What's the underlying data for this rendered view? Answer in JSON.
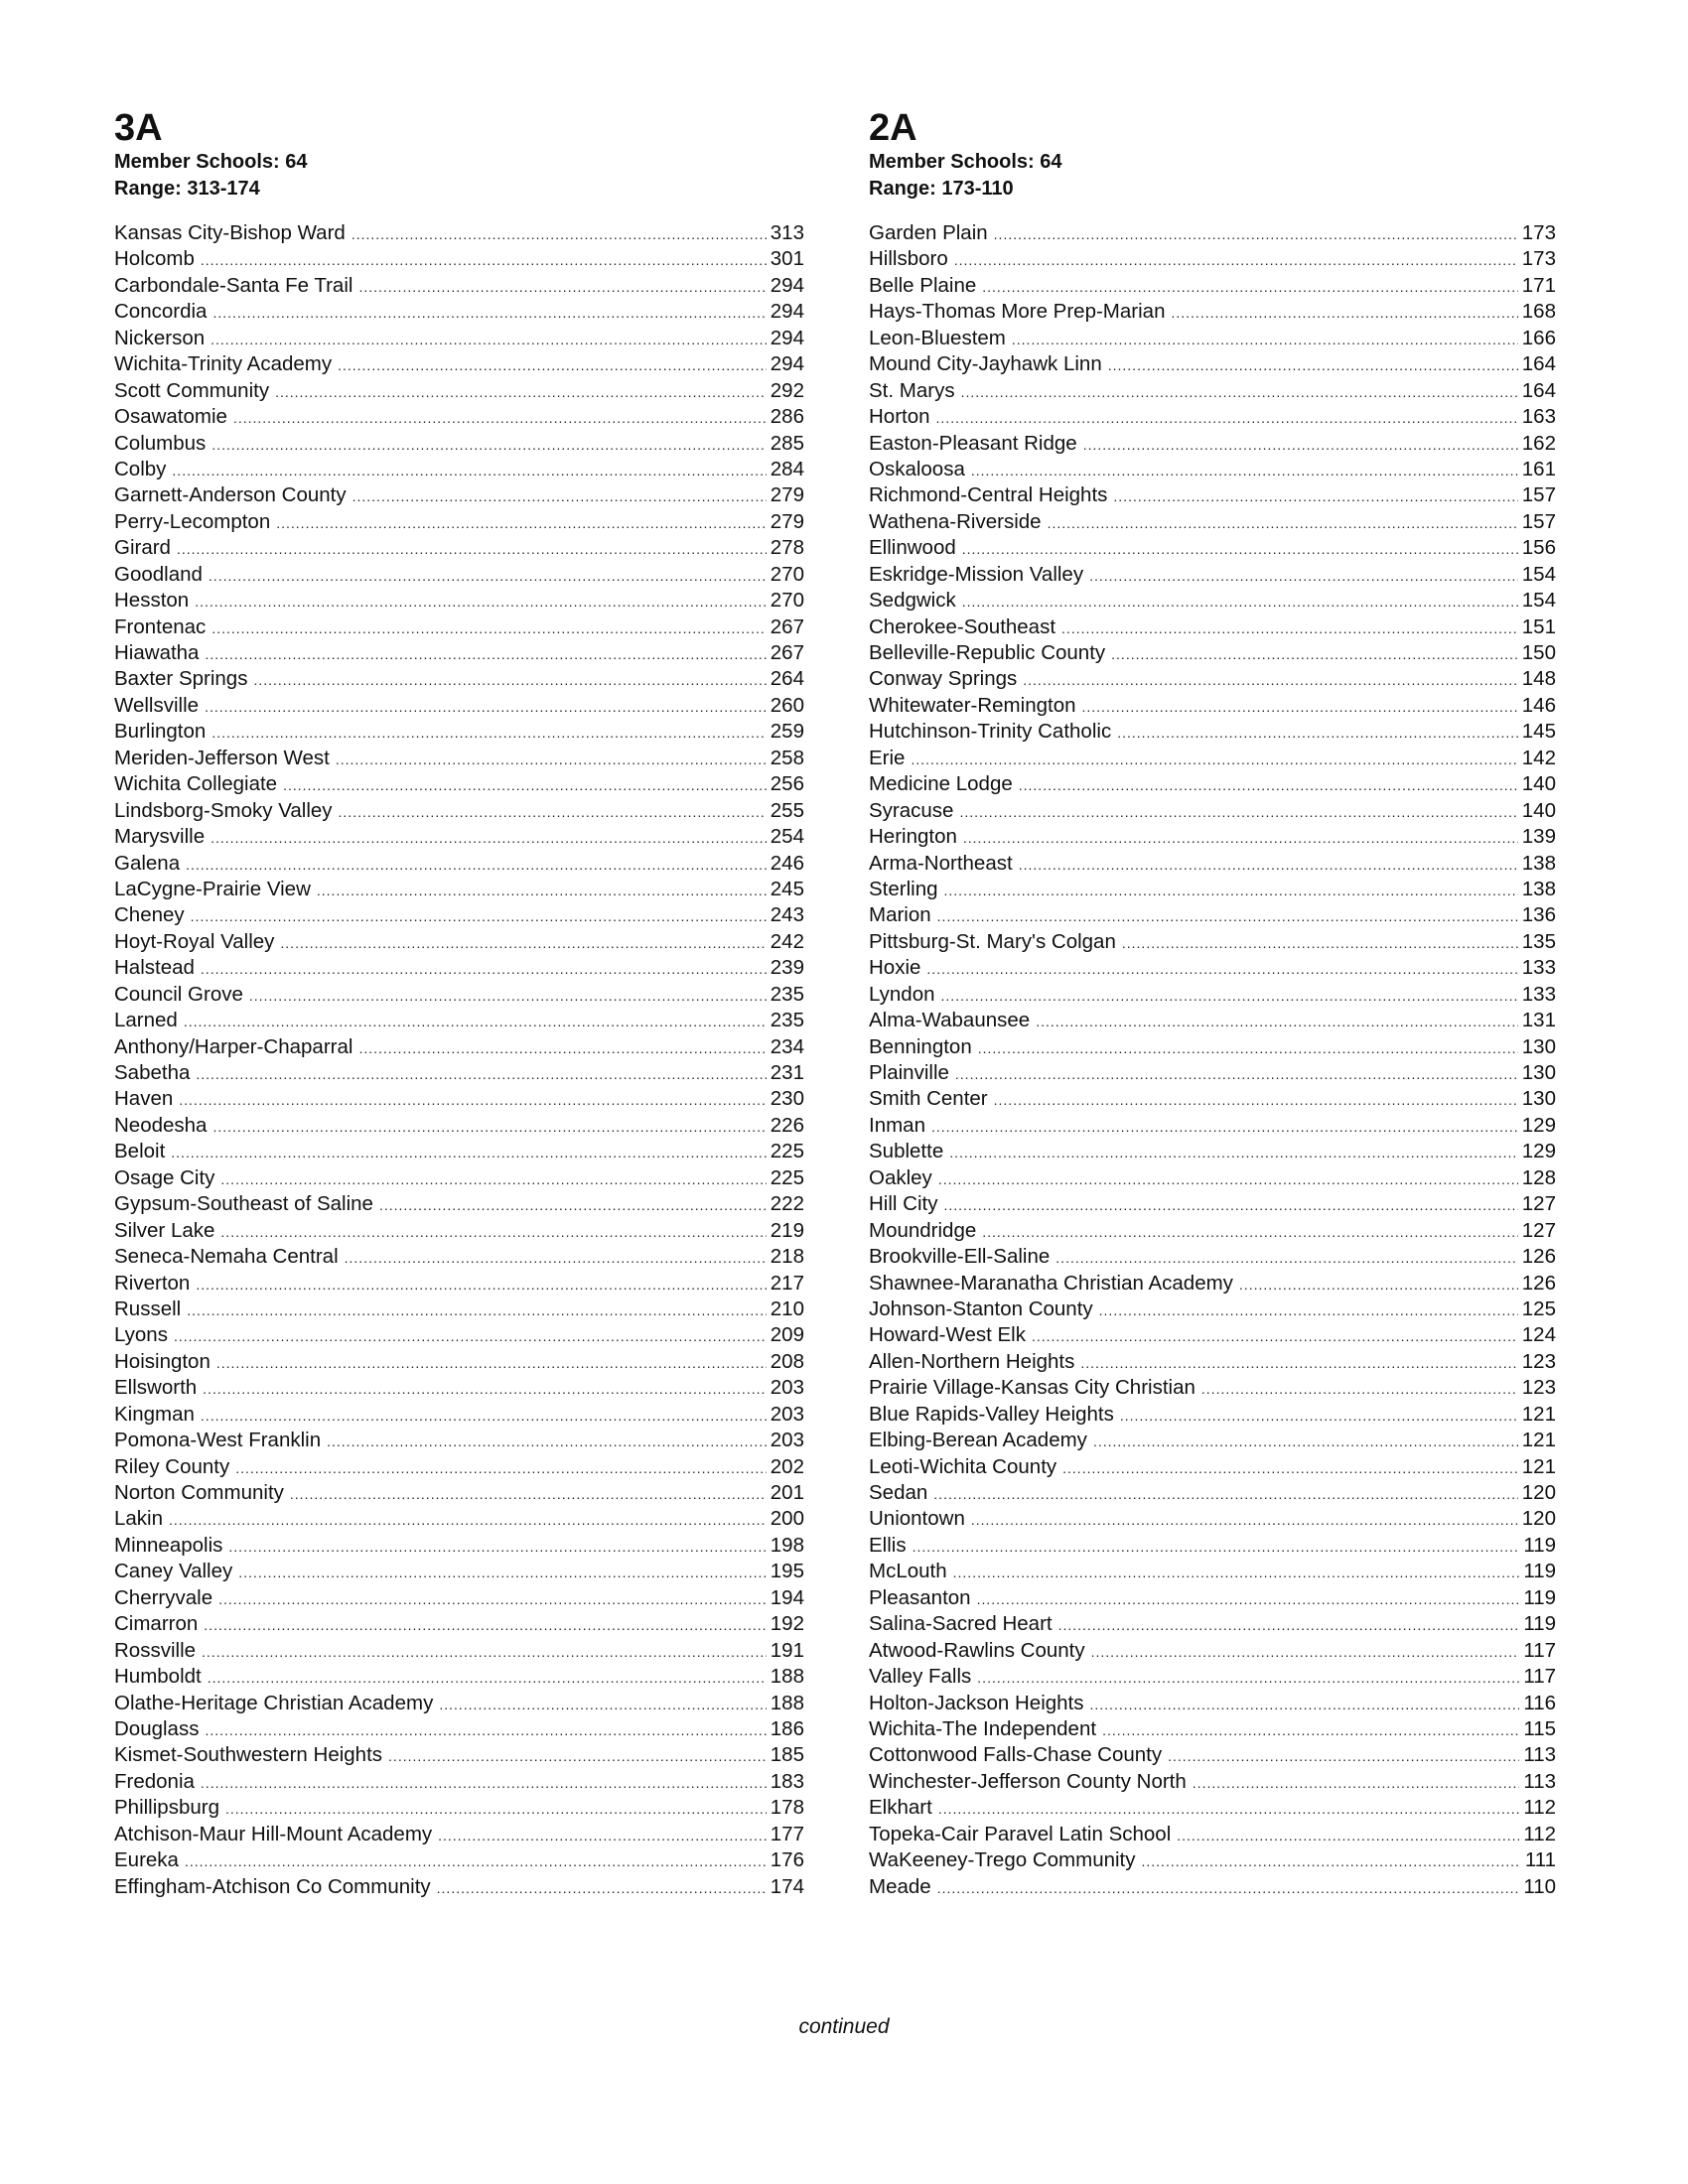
{
  "columns": [
    {
      "class": "3A",
      "member_schools": "Member Schools: 64",
      "range": "Range:  313-174",
      "schools": [
        [
          "Kansas City-Bishop Ward",
          "313"
        ],
        [
          "Holcomb",
          "301"
        ],
        [
          "Carbondale-Santa Fe Trail",
          "294"
        ],
        [
          "Concordia",
          "294"
        ],
        [
          "Nickerson",
          "294"
        ],
        [
          "Wichita-Trinity Academy",
          "294"
        ],
        [
          "Scott Community",
          "292"
        ],
        [
          "Osawatomie",
          "286"
        ],
        [
          "Columbus",
          "285"
        ],
        [
          "Colby",
          "284"
        ],
        [
          "Garnett-Anderson County",
          "279"
        ],
        [
          "Perry-Lecompton",
          "279"
        ],
        [
          "Girard",
          "278"
        ],
        [
          "Goodland",
          "270"
        ],
        [
          "Hesston",
          "270"
        ],
        [
          "Frontenac",
          "267"
        ],
        [
          "Hiawatha",
          "267"
        ],
        [
          "Baxter Springs",
          "264"
        ],
        [
          "Wellsville",
          "260"
        ],
        [
          "Burlington",
          "259"
        ],
        [
          "Meriden-Jefferson West",
          "258"
        ],
        [
          "Wichita Collegiate",
          "256"
        ],
        [
          "Lindsborg-Smoky Valley",
          "255"
        ],
        [
          "Marysville",
          "254"
        ],
        [
          "Galena",
          "246"
        ],
        [
          "LaCygne-Prairie View",
          "245"
        ],
        [
          "Cheney",
          "243"
        ],
        [
          "Hoyt-Royal Valley",
          "242"
        ],
        [
          "Halstead",
          "239"
        ],
        [
          "Council Grove",
          "235"
        ],
        [
          "Larned",
          "235"
        ],
        [
          "Anthony/Harper-Chaparral",
          "234"
        ],
        [
          "Sabetha",
          "231"
        ],
        [
          "Haven",
          "230"
        ],
        [
          "Neodesha",
          "226"
        ],
        [
          "Beloit",
          "225"
        ],
        [
          "Osage City",
          "225"
        ],
        [
          "Gypsum-Southeast of Saline",
          "222"
        ],
        [
          "Silver Lake",
          "219"
        ],
        [
          "Seneca-Nemaha Central",
          "218"
        ],
        [
          "Riverton",
          "217"
        ],
        [
          "Russell",
          "210"
        ],
        [
          "Lyons",
          "209"
        ],
        [
          "Hoisington",
          "208"
        ],
        [
          "Ellsworth",
          "203"
        ],
        [
          "Kingman",
          "203"
        ],
        [
          "Pomona-West Franklin",
          "203"
        ],
        [
          "Riley County",
          "202"
        ],
        [
          "Norton Community",
          "201"
        ],
        [
          "Lakin",
          "200"
        ],
        [
          "Minneapolis",
          "198"
        ],
        [
          "Caney Valley",
          "195"
        ],
        [
          "Cherryvale",
          "194"
        ],
        [
          "Cimarron",
          "192"
        ],
        [
          "Rossville",
          "191"
        ],
        [
          "Humboldt",
          "188"
        ],
        [
          "Olathe-Heritage Christian Academy",
          "188"
        ],
        [
          "Douglass",
          "186"
        ],
        [
          "Kismet-Southwestern Heights",
          "185"
        ],
        [
          "Fredonia",
          "183"
        ],
        [
          "Phillipsburg",
          "178"
        ],
        [
          "Atchison-Maur Hill-Mount Academy",
          "177"
        ],
        [
          "Eureka",
          "176"
        ],
        [
          "Effingham-Atchison Co Community",
          "174"
        ]
      ]
    },
    {
      "class": "2A",
      "member_schools": "Member Schools: 64",
      "range": "Range:  173-110",
      "schools": [
        [
          "Garden Plain",
          "173"
        ],
        [
          "Hillsboro",
          "173"
        ],
        [
          "Belle Plaine",
          "171"
        ],
        [
          "Hays-Thomas More Prep-Marian",
          "168"
        ],
        [
          "Leon-Bluestem",
          "166"
        ],
        [
          "Mound City-Jayhawk Linn",
          "164"
        ],
        [
          "St. Marys",
          "164"
        ],
        [
          "Horton",
          "163"
        ],
        [
          "Easton-Pleasant Ridge",
          "162"
        ],
        [
          "Oskaloosa",
          "161"
        ],
        [
          "Richmond-Central Heights",
          "157"
        ],
        [
          "Wathena-Riverside",
          "157"
        ],
        [
          "Ellinwood",
          "156"
        ],
        [
          "Eskridge-Mission Valley",
          "154"
        ],
        [
          "Sedgwick",
          "154"
        ],
        [
          "Cherokee-Southeast",
          "151"
        ],
        [
          "Belleville-Republic County",
          "150"
        ],
        [
          "Conway Springs",
          "148"
        ],
        [
          "Whitewater-Remington",
          "146"
        ],
        [
          "Hutchinson-Trinity Catholic",
          "145"
        ],
        [
          "Erie",
          "142"
        ],
        [
          "Medicine Lodge",
          "140"
        ],
        [
          "Syracuse",
          "140"
        ],
        [
          "Herington",
          "139"
        ],
        [
          "Arma-Northeast",
          "138"
        ],
        [
          "Sterling",
          "138"
        ],
        [
          "Marion",
          "136"
        ],
        [
          "Pittsburg-St. Mary's Colgan",
          "135"
        ],
        [
          "Hoxie",
          "133"
        ],
        [
          "Lyndon",
          "133"
        ],
        [
          "Alma-Wabaunsee",
          "131"
        ],
        [
          "Bennington",
          "130"
        ],
        [
          "Plainville",
          "130"
        ],
        [
          "Smith Center",
          "130"
        ],
        [
          "Inman",
          "129"
        ],
        [
          "Sublette",
          "129"
        ],
        [
          "Oakley",
          "128"
        ],
        [
          "Hill City",
          "127"
        ],
        [
          "Moundridge",
          "127"
        ],
        [
          "Brookville-Ell-Saline",
          "126"
        ],
        [
          "Shawnee-Maranatha Christian Academy",
          "126"
        ],
        [
          "Johnson-Stanton County",
          "125"
        ],
        [
          "Howard-West Elk",
          "124"
        ],
        [
          "Allen-Northern Heights",
          "123"
        ],
        [
          "Prairie Village-Kansas City Christian",
          "123"
        ],
        [
          "Blue Rapids-Valley Heights",
          "121"
        ],
        [
          "Elbing-Berean Academy",
          "121"
        ],
        [
          "Leoti-Wichita County",
          "121"
        ],
        [
          "Sedan",
          "120"
        ],
        [
          "Uniontown",
          "120"
        ],
        [
          "Ellis",
          "119"
        ],
        [
          "McLouth",
          "119"
        ],
        [
          "Pleasanton",
          "119"
        ],
        [
          "Salina-Sacred Heart",
          "119"
        ],
        [
          "Atwood-Rawlins County",
          "117"
        ],
        [
          "Valley Falls",
          "117"
        ],
        [
          "Holton-Jackson Heights",
          "116"
        ],
        [
          "Wichita-The Independent",
          "115"
        ],
        [
          "Cottonwood Falls-Chase County",
          "113"
        ],
        [
          "Winchester-Jefferson County North",
          "113"
        ],
        [
          "Elkhart",
          "112"
        ],
        [
          "Topeka-Cair Paravel Latin School",
          "112"
        ],
        [
          "WaKeeney-Trego Community",
          "111"
        ],
        [
          "Meade",
          "110"
        ]
      ]
    }
  ],
  "footer": "continued"
}
